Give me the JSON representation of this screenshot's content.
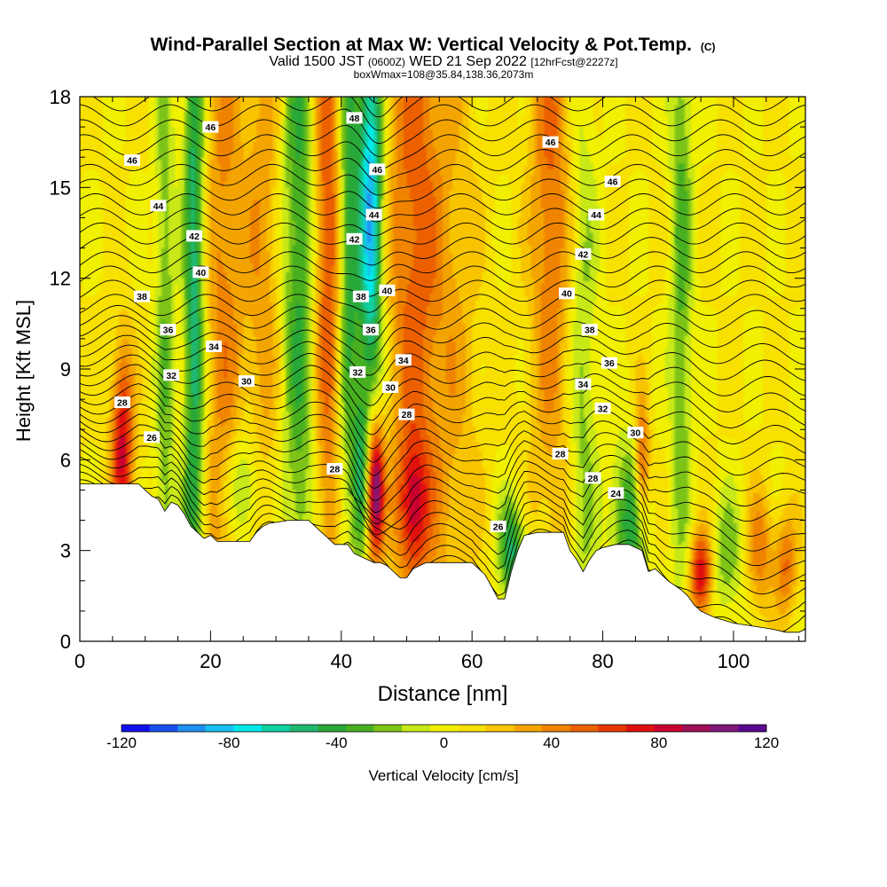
{
  "chart_data": {
    "type": "heatmap",
    "title": "Wind-Parallel Section at Max W: Vertical Velocity & Pot.Temp.",
    "title_mark": "(C)",
    "subtitle_main": "Valid 1500 JST",
    "subtitle_z": "(0600Z)",
    "subtitle_date": "WED 21 Sep 2022",
    "subtitle_fcst": "[12hrFcst@2227z]",
    "subtitle2": "boxWmax=108@35.84,138.36,2073m",
    "xlabel": "Distance [nm]",
    "ylabel": "Height [Kft MSL]",
    "xlim": [
      0,
      111
    ],
    "ylim": [
      0,
      18
    ],
    "xticks": [
      "0",
      "20",
      "40",
      "60",
      "80",
      "100"
    ],
    "yticks": [
      "0",
      "3",
      "6",
      "9",
      "12",
      "15",
      "18"
    ],
    "colorbar": {
      "label": "Vertical Velocity [cm/s]",
      "range": [
        -120,
        120
      ],
      "ticks": [
        "-120",
        "-80",
        "-40",
        "0",
        "40",
        "80",
        "120"
      ],
      "colors": [
        "#1010ee",
        "#1a50f0",
        "#1e90f0",
        "#18c0f0",
        "#00e8e8",
        "#10d0a0",
        "#20b870",
        "#28a838",
        "#48b020",
        "#7ec418",
        "#c8e818",
        "#f0f000",
        "#f8e000",
        "#f8c400",
        "#f4a400",
        "#f08400",
        "#ec6000",
        "#e83800",
        "#e01010",
        "#c80030",
        "#a0105a",
        "#801878",
        "#5a0a90"
      ]
    },
    "terrain_kft": [
      [
        0,
        5.2
      ],
      [
        3,
        5.2
      ],
      [
        6,
        5.2
      ],
      [
        9,
        5.2
      ],
      [
        10,
        5.0
      ],
      [
        11,
        4.8
      ],
      [
        12,
        4.7
      ],
      [
        13,
        4.3
      ],
      [
        14,
        4.6
      ],
      [
        15,
        4.5
      ],
      [
        16,
        4.2
      ],
      [
        17,
        3.8
      ],
      [
        18,
        3.6
      ],
      [
        19,
        3.4
      ],
      [
        20,
        3.5
      ],
      [
        21,
        3.3
      ],
      [
        22,
        3.3
      ],
      [
        24,
        3.3
      ],
      [
        26,
        3.3
      ],
      [
        27,
        3.6
      ],
      [
        28,
        3.8
      ],
      [
        29,
        3.9
      ],
      [
        32,
        4.0
      ],
      [
        35,
        4.0
      ],
      [
        37,
        3.6
      ],
      [
        38,
        3.4
      ],
      [
        39,
        3.2
      ],
      [
        41,
        3.2
      ],
      [
        42,
        2.9
      ],
      [
        43,
        2.8
      ],
      [
        44,
        2.7
      ],
      [
        45,
        2.6
      ],
      [
        46,
        2.6
      ],
      [
        47,
        2.5
      ],
      [
        48,
        2.3
      ],
      [
        49,
        2.1
      ],
      [
        50,
        2.1
      ],
      [
        51,
        2.4
      ],
      [
        53,
        2.6
      ],
      [
        56,
        2.6
      ],
      [
        58,
        2.6
      ],
      [
        60,
        2.6
      ],
      [
        61,
        2.4
      ],
      [
        62,
        2.2
      ],
      [
        63,
        1.8
      ],
      [
        64,
        1.4
      ],
      [
        65,
        1.4
      ],
      [
        66,
        2.3
      ],
      [
        67,
        3.0
      ],
      [
        68,
        3.5
      ],
      [
        70,
        3.6
      ],
      [
        72,
        3.6
      ],
      [
        74,
        3.6
      ],
      [
        75,
        3.0
      ],
      [
        76,
        2.7
      ],
      [
        77,
        2.3
      ],
      [
        78,
        2.7
      ],
      [
        79,
        3.0
      ],
      [
        80,
        3.1
      ],
      [
        82,
        3.2
      ],
      [
        84,
        3.2
      ],
      [
        86,
        3.0
      ],
      [
        87,
        2.3
      ],
      [
        88,
        2.4
      ],
      [
        89,
        2.2
      ],
      [
        90,
        2.0
      ],
      [
        92,
        1.7
      ],
      [
        93,
        1.5
      ],
      [
        94,
        1.2
      ],
      [
        95,
        1.0
      ],
      [
        97,
        0.8
      ],
      [
        100,
        0.6
      ],
      [
        103,
        0.5
      ],
      [
        106,
        0.4
      ],
      [
        108,
        0.3
      ],
      [
        110,
        0.3
      ],
      [
        111,
        0.4
      ]
    ],
    "w_features_cm_s": [
      {
        "x": 6.5,
        "y": 6.4,
        "w": 75,
        "wx": 1.2,
        "hy": 2.3
      },
      {
        "x": 13,
        "y": 10,
        "w": -30,
        "wx": 1.0,
        "hy": 14
      },
      {
        "x": 17.5,
        "y": 12,
        "w": -62,
        "wx": 1.1,
        "hy": 12
      },
      {
        "x": 22,
        "y": 11,
        "w": 35,
        "wx": 2.2,
        "hy": 12
      },
      {
        "x": 25,
        "y": 5,
        "w": -40,
        "wx": 2.0,
        "hy": 1.5
      },
      {
        "x": 28,
        "y": 13,
        "w": 28,
        "wx": 2.0,
        "hy": 8
      },
      {
        "x": 33.5,
        "y": 13,
        "w": -45,
        "wx": 1.8,
        "hy": 10
      },
      {
        "x": 38,
        "y": 14,
        "w": 55,
        "wx": 1.6,
        "hy": 9
      },
      {
        "x": 41,
        "y": 14,
        "w": -52,
        "wx": 1.2,
        "hy": 8
      },
      {
        "x": 44.5,
        "y": 14.5,
        "w": -95,
        "wx": 1.3,
        "hy": 5
      },
      {
        "x": 45.2,
        "y": 5.0,
        "w": 110,
        "wx": 0.9,
        "hy": 1.6
      },
      {
        "x": 43,
        "y": 5.5,
        "w": -40,
        "wx": 0.8,
        "hy": 2
      },
      {
        "x": 51,
        "y": 14,
        "w": 45,
        "wx": 3.0,
        "hy": 10
      },
      {
        "x": 51,
        "y": 4.5,
        "w": 55,
        "wx": 1.6,
        "hy": 1.5
      },
      {
        "x": 57,
        "y": 9,
        "w": 20,
        "wx": 3.0,
        "hy": 9
      },
      {
        "x": 66,
        "y": 3.0,
        "w": -55,
        "wx": 1.4,
        "hy": 1.2
      },
      {
        "x": 72,
        "y": 15,
        "w": 42,
        "wx": 2.2,
        "hy": 8
      },
      {
        "x": 77,
        "y": 8,
        "w": -25,
        "wx": 1.5,
        "hy": 9
      },
      {
        "x": 84,
        "y": 4.0,
        "w": -50,
        "wx": 2.0,
        "hy": 1.8
      },
      {
        "x": 86,
        "y": 5.8,
        "w": 60,
        "wx": 0.8,
        "hy": 1.5
      },
      {
        "x": 92,
        "y": 13,
        "w": -35,
        "wx": 1.2,
        "hy": 9
      },
      {
        "x": 95,
        "y": 2.2,
        "w": 75,
        "wx": 1.2,
        "hy": 1.0
      },
      {
        "x": 99,
        "y": 2.8,
        "w": -28,
        "wx": 1.8,
        "hy": 1.5
      },
      {
        "x": 104,
        "y": 3.0,
        "w": 38,
        "wx": 1.4,
        "hy": 1.4
      },
      {
        "x": 108,
        "y": 2.5,
        "w": 42,
        "wx": 1.2,
        "hy": 1.2
      }
    ],
    "theta_labels": [
      {
        "x": 20,
        "y": 17.0,
        "t": "46"
      },
      {
        "x": 8,
        "y": 15.9,
        "t": "46"
      },
      {
        "x": 12,
        "y": 14.4,
        "t": "44"
      },
      {
        "x": 17.5,
        "y": 13.4,
        "t": "42"
      },
      {
        "x": 18.5,
        "y": 12.2,
        "t": "40"
      },
      {
        "x": 9.5,
        "y": 11.4,
        "t": "38"
      },
      {
        "x": 13.5,
        "y": 10.3,
        "t": "36"
      },
      {
        "x": 20.5,
        "y": 9.75,
        "t": "34"
      },
      {
        "x": 14,
        "y": 8.8,
        "t": "32"
      },
      {
        "x": 25.5,
        "y": 8.6,
        "t": "30"
      },
      {
        "x": 6.5,
        "y": 7.9,
        "t": "28"
      },
      {
        "x": 11,
        "y": 6.75,
        "t": "26"
      },
      {
        "x": 42,
        "y": 17.3,
        "t": "48"
      },
      {
        "x": 72,
        "y": 16.5,
        "t": "46"
      },
      {
        "x": 45.5,
        "y": 15.6,
        "t": "46"
      },
      {
        "x": 45,
        "y": 14.1,
        "t": "44"
      },
      {
        "x": 42,
        "y": 13.3,
        "t": "42"
      },
      {
        "x": 47,
        "y": 11.6,
        "t": "40"
      },
      {
        "x": 43,
        "y": 11.4,
        "t": "38"
      },
      {
        "x": 44.5,
        "y": 10.3,
        "t": "36"
      },
      {
        "x": 49.5,
        "y": 9.3,
        "t": "34"
      },
      {
        "x": 42.5,
        "y": 8.9,
        "t": "32"
      },
      {
        "x": 47.5,
        "y": 8.4,
        "t": "30"
      },
      {
        "x": 50,
        "y": 7.5,
        "t": "28"
      },
      {
        "x": 39,
        "y": 5.7,
        "t": "28"
      },
      {
        "x": 64,
        "y": 3.8,
        "t": "26"
      },
      {
        "x": 81.5,
        "y": 15.2,
        "t": "46"
      },
      {
        "x": 79,
        "y": 14.1,
        "t": "44"
      },
      {
        "x": 77,
        "y": 12.8,
        "t": "42"
      },
      {
        "x": 74.5,
        "y": 11.5,
        "t": "40"
      },
      {
        "x": 78,
        "y": 10.3,
        "t": "38"
      },
      {
        "x": 81,
        "y": 9.2,
        "t": "36"
      },
      {
        "x": 77,
        "y": 8.5,
        "t": "34"
      },
      {
        "x": 80,
        "y": 7.7,
        "t": "32"
      },
      {
        "x": 85,
        "y": 6.9,
        "t": "30"
      },
      {
        "x": 73.5,
        "y": 6.2,
        "t": "28"
      },
      {
        "x": 78.5,
        "y": 5.4,
        "t": "28"
      },
      {
        "x": 82,
        "y": 4.9,
        "t": "24"
      }
    ]
  }
}
